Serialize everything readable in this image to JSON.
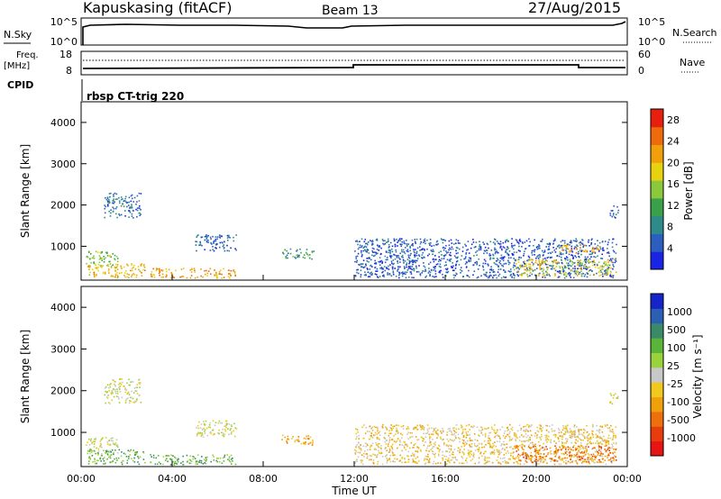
{
  "header": {
    "station": "Kapuskasing (fitACF)",
    "beam": "Beam 13",
    "date": "27/Aug/2015"
  },
  "top_panels": {
    "nsky_label": "N.Sky",
    "nsky_ticks": [
      "10^5",
      "10^0"
    ],
    "nsearch_label": "N.Search",
    "nsearch_ticks": [
      "10^5",
      "10^0"
    ],
    "freq_label": "Freq.",
    "freq_unit": "[MHz]",
    "freq_ticks": [
      "18",
      "8"
    ],
    "nave_label": "Nave",
    "nave_ticks": [
      "60",
      "0"
    ],
    "cpid_label": "CPID",
    "cpid_value": "rbsp CT-trig 220"
  },
  "colors": {
    "power_scale": [
      "#1a24e6",
      "#2a5fc0",
      "#2f8a8a",
      "#3aa04a",
      "#8cc83c",
      "#e6d20f",
      "#f0a00a",
      "#ee6a0c",
      "#e6200c"
    ],
    "velocity_scale": [
      "#1424c8",
      "#2a5fb4",
      "#3a8a6a",
      "#5ab43a",
      "#9ad23c",
      "#c8c8c8",
      "#f0c81e",
      "#f0a00a",
      "#ee700c",
      "#e83c0c",
      "#e61414"
    ]
  },
  "chart_data": [
    {
      "type": "heatmap",
      "name": "power",
      "ylabel": "Slant Range [km]",
      "yticks": [
        "1000",
        "2000",
        "3000",
        "4000"
      ],
      "ylim": [
        180,
        4500
      ],
      "colorbar_label": "Power [dB]",
      "colorbar_ticks": [
        "4",
        "8",
        "12",
        "16",
        "20",
        "24",
        "28"
      ],
      "colorbar_range": [
        0,
        30
      ],
      "echo_regions": [
        {
          "t0": 0.2,
          "t1": 1.6,
          "r0": 500,
          "r1": 900,
          "v": 14
        },
        {
          "t0": 1.0,
          "t1": 2.6,
          "r0": 1700,
          "r1": 2300,
          "v": 7
        },
        {
          "t0": 0.3,
          "t1": 2.8,
          "r0": 250,
          "r1": 600,
          "v": 20
        },
        {
          "t0": 3.0,
          "t1": 6.8,
          "r0": 240,
          "r1": 480,
          "v": 22
        },
        {
          "t0": 5.0,
          "t1": 6.8,
          "r0": 900,
          "r1": 1300,
          "v": 6
        },
        {
          "t0": 8.8,
          "t1": 10.2,
          "r0": 700,
          "r1": 950,
          "v": 10
        },
        {
          "t0": 12.0,
          "t1": 23.5,
          "r0": 250,
          "r1": 1200,
          "v": 5
        },
        {
          "t0": 19.0,
          "t1": 23.5,
          "r0": 300,
          "r1": 700,
          "v": 18
        },
        {
          "t0": 21.0,
          "t1": 22.8,
          "r0": 850,
          "r1": 1050,
          "v": 22
        },
        {
          "t0": 23.2,
          "t1": 23.6,
          "r0": 1700,
          "r1": 2000,
          "v": 6
        }
      ]
    },
    {
      "type": "heatmap",
      "name": "velocity",
      "ylabel": "Slant Range [km]",
      "yticks": [
        "1000",
        "2000",
        "3000",
        "4000"
      ],
      "ylim": [
        180,
        4500
      ],
      "colorbar_label": "Velocity [m s⁻¹]",
      "colorbar_ticks": [
        "1000",
        "500",
        "100",
        "25",
        "-25",
        "-100",
        "-500",
        "-1000"
      ],
      "echo_regions": [
        {
          "t0": 0.2,
          "t1": 1.6,
          "r0": 500,
          "r1": 900,
          "c": 5
        },
        {
          "t0": 1.0,
          "t1": 2.6,
          "r0": 1700,
          "r1": 2300,
          "c": 5
        },
        {
          "t0": 0.3,
          "t1": 2.8,
          "r0": 250,
          "r1": 600,
          "c": 3
        },
        {
          "t0": 3.0,
          "t1": 6.8,
          "r0": 240,
          "r1": 480,
          "c": 3
        },
        {
          "t0": 5.0,
          "t1": 6.8,
          "r0": 900,
          "r1": 1300,
          "c": 5
        },
        {
          "t0": 8.8,
          "t1": 10.2,
          "r0": 700,
          "r1": 950,
          "c": 7
        },
        {
          "t0": 12.0,
          "t1": 23.5,
          "r0": 250,
          "r1": 1200,
          "c": 6
        },
        {
          "t0": 19.0,
          "t1": 23.5,
          "r0": 300,
          "r1": 700,
          "c": 8
        },
        {
          "t0": 21.0,
          "t1": 22.8,
          "r0": 850,
          "r1": 1050,
          "c": 6
        },
        {
          "t0": 23.2,
          "t1": 23.6,
          "r0": 1700,
          "r1": 2000,
          "c": 5
        }
      ]
    }
  ],
  "xaxis": {
    "label": "Time UT",
    "ticks": [
      "00:00",
      "04:00",
      "08:00",
      "12:00",
      "16:00",
      "20:00",
      "00:00"
    ]
  }
}
